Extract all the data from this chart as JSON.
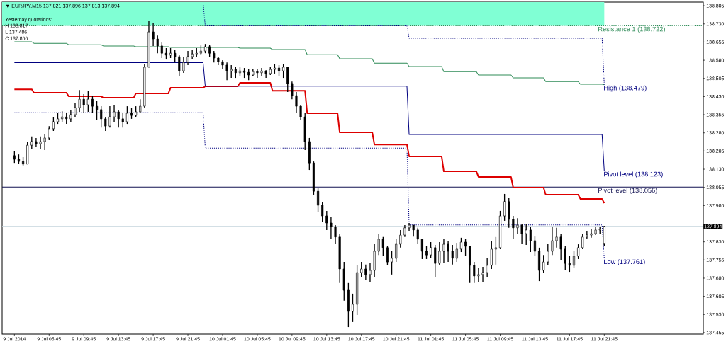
{
  "chart_data": {
    "type": "candlestick",
    "title": "▼ EURJPY,M15 137.821 137.896 137.813 137.894",
    "annotations": [
      "Yesterday quotations:",
      "H 138.817",
      "L 137.486",
      "C 137.866"
    ],
    "color": "#000000",
    "x": [
      "2014-07-09T01:45",
      "2014-07-09T02:15",
      "2014-07-09T02:45",
      "2014-07-09T03:15",
      "2014-07-09T03:45",
      "2014-07-09T04:15",
      "2014-07-09T04:45",
      "2014-07-09T05:15",
      "2014-07-09T05:45",
      "2014-07-09T06:15",
      "2014-07-09T06:45",
      "2014-07-09T07:15",
      "2014-07-09T07:45",
      "2014-07-09T08:15",
      "2014-07-09T08:45",
      "2014-07-09T09:15",
      "2014-07-09T09:45",
      "2014-07-09T10:15",
      "2014-07-09T10:45",
      "2014-07-09T11:15",
      "2014-07-09T11:45",
      "2014-07-09T12:15",
      "2014-07-09T12:45",
      "2014-07-09T13:15",
      "2014-07-09T13:45",
      "2014-07-09T14:15",
      "2014-07-09T14:45",
      "2014-07-09T15:15",
      "2014-07-09T15:45",
      "2014-07-09T16:15",
      "2014-07-09T16:45",
      "2014-07-09T17:15",
      "2014-07-09T17:45",
      "2014-07-09T18:15",
      "2014-07-09T18:45",
      "2014-07-09T19:15",
      "2014-07-09T19:45",
      "2014-07-09T20:15",
      "2014-07-09T20:45",
      "2014-07-09T21:15",
      "2014-07-09T21:45",
      "2014-07-09T22:15",
      "2014-07-09T22:45",
      "2014-07-09T23:15",
      "2014-07-09T23:45",
      "2014-07-10T00:15",
      "2014-07-10T00:45",
      "2014-07-10T01:15",
      "2014-07-10T01:45",
      "2014-07-10T02:15",
      "2014-07-10T02:45",
      "2014-07-10T03:15",
      "2014-07-10T03:45",
      "2014-07-10T04:15",
      "2014-07-10T04:45",
      "2014-07-10T05:15",
      "2014-07-10T05:45",
      "2014-07-10T06:15",
      "2014-07-10T06:45",
      "2014-07-10T07:15",
      "2014-07-10T07:45",
      "2014-07-10T08:15",
      "2014-07-10T08:45",
      "2014-07-10T09:15",
      "2014-07-10T09:45",
      "2014-07-10T10:15",
      "2014-07-10T10:45",
      "2014-07-10T11:15",
      "2014-07-10T11:45",
      "2014-07-10T12:15",
      "2014-07-10T12:45",
      "2014-07-10T13:15",
      "2014-07-10T13:45",
      "2014-07-10T14:15",
      "2014-07-10T14:45",
      "2014-07-10T15:15",
      "2014-07-10T15:45",
      "2014-07-10T16:15",
      "2014-07-10T16:45",
      "2014-07-10T17:15",
      "2014-07-10T17:45",
      "2014-07-10T18:15",
      "2014-07-10T18:45",
      "2014-07-10T19:15",
      "2014-07-10T19:45",
      "2014-07-10T20:15",
      "2014-07-10T20:45",
      "2014-07-10T21:15",
      "2014-07-10T21:45",
      "2014-07-10T22:15",
      "2014-07-10T22:45",
      "2014-07-10T23:15",
      "2014-07-10T23:45",
      "2014-07-11T00:15",
      "2014-07-11T00:45",
      "2014-07-11T01:15",
      "2014-07-11T01:45",
      "2014-07-11T02:15",
      "2014-07-11T02:45",
      "2014-07-11T03:15",
      "2014-07-11T03:45",
      "2014-07-11T04:15",
      "2014-07-11T04:45",
      "2014-07-11T05:15",
      "2014-07-11T05:45",
      "2014-07-11T06:15",
      "2014-07-11T06:45",
      "2014-07-11T07:15",
      "2014-07-11T07:45",
      "2014-07-11T08:15",
      "2014-07-11T08:45",
      "2014-07-11T09:15",
      "2014-07-11T09:45",
      "2014-07-11T10:15",
      "2014-07-11T10:45",
      "2014-07-11T11:15",
      "2014-07-11T11:45",
      "2014-07-11T12:15",
      "2014-07-11T12:45",
      "2014-07-11T13:15",
      "2014-07-11T13:45",
      "2014-07-11T14:15",
      "2014-07-11T14:45",
      "2014-07-11T15:15",
      "2014-07-11T15:45",
      "2014-07-11T16:15",
      "2014-07-11T16:45",
      "2014-07-11T17:15",
      "2014-07-11T17:45",
      "2014-07-11T18:15",
      "2014-07-11T18:45",
      "2014-07-11T19:15",
      "2014-07-11T19:45",
      "2014-07-11T20:15",
      "2014-07-11T20:45",
      "2014-07-11T21:15",
      "2014-07-11T21:45"
    ],
    "ohlc": [
      [
        138.186,
        138.206,
        138.156,
        138.171
      ],
      [
        138.171,
        138.191,
        138.151,
        138.162
      ],
      [
        138.162,
        138.18,
        138.145,
        138.151
      ],
      [
        138.151,
        138.244,
        138.151,
        138.229
      ],
      [
        138.229,
        138.265,
        138.215,
        138.244
      ],
      [
        138.244,
        138.259,
        138.221,
        138.235
      ],
      [
        138.235,
        138.265,
        138.215,
        138.244
      ],
      [
        138.244,
        138.273,
        138.209,
        138.259
      ],
      [
        138.259,
        138.308,
        138.25,
        138.297
      ],
      [
        138.297,
        138.346,
        138.288,
        138.326
      ],
      [
        138.326,
        138.361,
        138.317,
        138.338
      ],
      [
        138.338,
        138.37,
        138.326,
        138.346
      ],
      [
        138.346,
        138.361,
        138.317,
        138.338
      ],
      [
        138.338,
        138.376,
        138.326,
        138.355
      ],
      [
        138.355,
        138.405,
        138.346,
        138.384
      ],
      [
        138.384,
        138.457,
        138.367,
        138.419
      ],
      [
        138.419,
        138.44,
        138.361,
        138.396
      ],
      [
        138.396,
        138.454,
        138.367,
        138.419
      ],
      [
        138.419,
        138.434,
        138.361,
        138.39
      ],
      [
        138.39,
        138.411,
        138.332,
        138.376
      ],
      [
        138.376,
        138.39,
        138.302,
        138.338
      ],
      [
        138.338,
        138.346,
        138.288,
        138.308
      ],
      [
        138.308,
        138.39,
        138.302,
        138.346
      ],
      [
        138.346,
        138.396,
        138.326,
        138.367
      ],
      [
        138.367,
        138.376,
        138.302,
        138.338
      ],
      [
        138.338,
        138.361,
        138.302,
        138.326
      ],
      [
        138.326,
        138.39,
        138.317,
        138.361
      ],
      [
        138.361,
        138.384,
        138.338,
        138.352
      ],
      [
        138.352,
        138.39,
        138.346,
        138.367
      ],
      [
        138.367,
        138.419,
        138.361,
        138.39
      ],
      [
        138.39,
        138.565,
        138.384,
        138.551
      ],
      [
        138.551,
        138.744,
        138.551,
        138.697
      ],
      [
        138.697,
        138.732,
        138.639,
        138.668
      ],
      [
        138.668,
        138.682,
        138.609,
        138.639
      ],
      [
        138.639,
        138.653,
        138.589,
        138.609
      ],
      [
        138.609,
        138.63,
        138.583,
        138.601
      ],
      [
        138.601,
        138.63,
        138.589,
        138.609
      ],
      [
        138.609,
        138.624,
        138.571,
        138.595
      ],
      [
        138.595,
        138.601,
        138.516,
        138.536
      ],
      [
        138.536,
        138.595,
        138.528,
        138.571
      ],
      [
        138.571,
        138.618,
        138.56,
        138.595
      ],
      [
        138.595,
        138.624,
        138.583,
        138.606
      ],
      [
        138.606,
        138.63,
        138.595,
        138.609
      ],
      [
        138.609,
        138.641,
        138.601,
        138.618
      ],
      [
        138.618,
        138.647,
        138.609,
        138.636
      ],
      [
        138.636,
        138.644,
        138.595,
        138.609
      ],
      [
        138.609,
        138.618,
        138.571,
        138.589
      ],
      [
        138.589,
        138.595,
        138.56,
        138.574
      ],
      [
        138.574,
        138.58,
        138.545,
        138.56
      ],
      [
        138.56,
        138.571,
        138.498,
        138.536
      ],
      [
        138.536,
        138.56,
        138.507,
        138.542
      ],
      [
        138.542,
        138.551,
        138.507,
        138.528
      ],
      [
        138.528,
        138.551,
        138.513,
        138.536
      ],
      [
        138.536,
        138.548,
        138.507,
        138.53
      ],
      [
        138.53,
        138.542,
        138.498,
        138.519
      ],
      [
        138.519,
        138.545,
        138.513,
        138.533
      ],
      [
        138.533,
        138.542,
        138.507,
        138.528
      ],
      [
        138.528,
        138.548,
        138.516,
        138.536
      ],
      [
        138.536,
        138.539,
        138.507,
        138.525
      ],
      [
        138.525,
        138.554,
        138.519,
        138.542
      ],
      [
        138.542,
        138.565,
        138.525,
        138.548
      ],
      [
        138.548,
        138.56,
        138.513,
        138.536
      ],
      [
        138.536,
        138.565,
        138.507,
        138.551
      ],
      [
        138.551,
        138.551,
        138.449,
        138.484
      ],
      [
        138.484,
        138.492,
        138.419,
        138.434
      ],
      [
        138.434,
        138.449,
        138.361,
        138.39
      ],
      [
        138.39,
        138.396,
        138.332,
        138.346
      ],
      [
        138.346,
        138.361,
        138.209,
        138.244
      ],
      [
        138.244,
        138.259,
        138.127,
        138.156
      ],
      [
        138.156,
        138.162,
        138.025,
        138.039
      ],
      [
        138.039,
        138.054,
        137.952,
        137.981
      ],
      [
        137.981,
        137.996,
        137.911,
        137.937
      ],
      [
        137.937,
        137.958,
        137.879,
        137.908
      ],
      [
        137.908,
        137.934,
        137.841,
        137.893
      ],
      [
        137.893,
        137.899,
        137.82,
        137.85
      ],
      [
        137.85,
        137.864,
        137.66,
        137.718
      ],
      [
        137.718,
        137.747,
        137.587,
        137.63
      ],
      [
        137.63,
        137.66,
        137.478,
        137.543
      ],
      [
        137.543,
        137.616,
        137.499,
        137.572
      ],
      [
        137.572,
        137.733,
        137.528,
        137.703
      ],
      [
        137.703,
        137.747,
        137.683,
        137.718
      ],
      [
        137.718,
        137.736,
        137.671,
        137.695
      ],
      [
        137.695,
        137.741,
        137.665,
        137.712
      ],
      [
        137.712,
        137.82,
        137.683,
        137.791
      ],
      [
        137.791,
        137.864,
        137.776,
        137.841
      ],
      [
        137.841,
        137.85,
        137.771,
        137.806
      ],
      [
        137.806,
        137.812,
        137.733,
        137.747
      ],
      [
        137.747,
        137.791,
        137.695,
        137.762
      ],
      [
        137.762,
        137.841,
        137.747,
        137.82
      ],
      [
        137.82,
        137.879,
        137.806,
        137.858
      ],
      [
        137.858,
        137.899,
        137.85,
        137.888
      ],
      [
        137.888,
        137.908,
        137.876,
        137.899
      ],
      [
        137.899,
        137.899,
        137.852,
        137.879
      ],
      [
        137.879,
        137.888,
        137.82,
        137.841
      ],
      [
        137.841,
        137.841,
        137.759,
        137.791
      ],
      [
        137.791,
        137.812,
        137.759,
        137.776
      ],
      [
        137.776,
        137.829,
        137.762,
        137.806
      ],
      [
        137.806,
        137.817,
        137.683,
        137.741
      ],
      [
        137.741,
        137.829,
        137.733,
        137.791
      ],
      [
        137.791,
        137.841,
        137.741,
        137.82
      ],
      [
        137.82,
        137.835,
        137.747,
        137.791
      ],
      [
        137.791,
        137.817,
        137.736,
        137.762
      ],
      [
        137.762,
        137.823,
        137.747,
        137.8
      ],
      [
        137.8,
        137.847,
        137.788,
        137.829
      ],
      [
        137.829,
        137.841,
        137.771,
        137.812
      ],
      [
        137.812,
        137.812,
        137.66,
        137.733
      ],
      [
        137.733,
        137.747,
        137.66,
        137.689
      ],
      [
        137.689,
        137.724,
        137.665,
        137.695
      ],
      [
        137.695,
        137.727,
        137.665,
        137.703
      ],
      [
        137.703,
        137.762,
        137.683,
        137.733
      ],
      [
        137.733,
        137.835,
        137.718,
        137.8
      ],
      [
        137.8,
        137.85,
        137.736,
        137.806
      ],
      [
        137.806,
        137.958,
        137.8,
        137.937
      ],
      [
        137.937,
        138.028,
        137.917,
        137.996
      ],
      [
        137.996,
        138.01,
        137.888,
        137.923
      ],
      [
        137.923,
        137.937,
        137.841,
        137.888
      ],
      [
        137.888,
        137.928,
        137.864,
        137.899
      ],
      [
        137.899,
        137.905,
        137.82,
        137.864
      ],
      [
        137.864,
        137.905,
        137.817,
        137.879
      ],
      [
        137.879,
        137.893,
        137.788,
        137.835
      ],
      [
        137.835,
        137.852,
        137.771,
        137.791
      ],
      [
        137.791,
        137.806,
        137.668,
        137.712
      ],
      [
        137.712,
        137.776,
        137.703,
        137.747
      ],
      [
        137.747,
        137.82,
        137.733,
        137.791
      ],
      [
        137.791,
        137.893,
        137.776,
        137.835
      ],
      [
        137.835,
        137.888,
        137.806,
        137.85
      ],
      [
        137.85,
        137.864,
        137.753,
        137.8
      ],
      [
        137.8,
        137.812,
        137.712,
        137.741
      ],
      [
        137.741,
        137.771,
        137.706,
        137.733
      ],
      [
        137.733,
        137.791,
        137.724,
        137.771
      ],
      [
        137.771,
        137.82,
        137.759,
        137.806
      ],
      [
        137.806,
        137.864,
        137.8,
        137.85
      ],
      [
        137.85,
        137.876,
        137.841,
        137.858
      ],
      [
        137.858,
        137.882,
        137.847,
        137.864
      ],
      [
        137.864,
        137.893,
        137.858,
        137.879
      ],
      [
        137.879,
        137.893,
        137.864,
        137.882
      ],
      [
        137.821,
        137.896,
        137.813,
        137.894
      ]
    ],
    "series": [
      {
        "type": "line",
        "color": "#dd0000",
        "x": [
          "2014-07-09T01:45",
          "2014-07-09T03:45",
          "2014-07-09T04:00",
          "2014-07-09T07:45",
          "2014-07-09T08:00",
          "2014-07-09T11:45",
          "2014-07-09T12:00",
          "2014-07-09T15:30",
          "2014-07-09T15:45",
          "2014-07-09T19:30",
          "2014-07-09T19:45",
          "2014-07-09T23:30",
          "2014-07-09T23:45",
          "2014-07-10T03:30",
          "2014-07-10T03:45",
          "2014-07-10T07:15",
          "2014-07-10T07:30",
          "2014-07-10T11:15",
          "2014-07-10T11:30",
          "2014-07-10T15:00",
          "2014-07-10T15:15",
          "2014-07-10T19:00",
          "2014-07-10T19:15",
          "2014-07-10T23:00",
          "2014-07-10T23:15",
          "2014-07-11T03:00",
          "2014-07-11T03:15",
          "2014-07-11T07:00",
          "2014-07-11T07:15",
          "2014-07-11T11:00",
          "2014-07-11T11:15",
          "2014-07-11T14:45",
          "2014-07-11T15:00",
          "2014-07-11T18:45",
          "2014-07-11T19:00",
          "2014-07-11T21:30",
          "2014-07-11T21:45"
        ],
        "values": [
          138.46,
          138.46,
          138.446,
          138.446,
          138.431,
          138.431,
          138.425,
          138.425,
          138.443,
          138.443,
          138.466,
          138.466,
          138.472,
          138.472,
          138.487,
          138.487,
          138.454,
          138.454,
          138.361,
          138.361,
          138.282,
          138.282,
          138.232,
          138.232,
          138.183,
          138.183,
          138.121,
          138.121,
          138.098,
          138.098,
          138.054,
          138.054,
          138.025,
          138.025,
          138.007,
          138.007,
          137.99
        ]
      },
      {
        "type": "line",
        "color": "#2e8b57",
        "x": [
          "2014-07-09T01:45",
          "2014-07-09T03:45",
          "2014-07-09T04:00",
          "2014-07-09T07:45",
          "2014-07-09T08:00",
          "2014-07-09T11:45",
          "2014-07-09T12:00",
          "2014-07-09T15:30",
          "2014-07-09T15:45",
          "2014-07-09T19:30",
          "2014-07-09T19:45",
          "2014-07-09T23:30",
          "2014-07-09T23:45",
          "2014-07-10T03:30",
          "2014-07-10T03:45",
          "2014-07-10T07:15",
          "2014-07-10T07:30",
          "2014-07-10T11:15",
          "2014-07-10T11:30",
          "2014-07-10T15:00",
          "2014-07-10T15:15",
          "2014-07-10T19:00",
          "2014-07-10T19:15",
          "2014-07-10T23:00",
          "2014-07-10T23:15",
          "2014-07-11T03:00",
          "2014-07-11T03:15",
          "2014-07-11T07:00",
          "2014-07-11T07:15",
          "2014-07-11T11:00",
          "2014-07-11T11:15",
          "2014-07-11T14:45",
          "2014-07-11T15:00",
          "2014-07-11T18:45",
          "2014-07-11T19:00",
          "2014-07-11T21:30",
          "2014-07-11T21:45"
        ],
        "values": [
          138.656,
          138.656,
          138.65,
          138.65,
          138.644,
          138.644,
          138.639,
          138.639,
          138.636,
          138.636,
          138.633,
          138.633,
          138.633,
          138.633,
          138.63,
          138.63,
          138.624,
          138.624,
          138.603,
          138.603,
          138.586,
          138.586,
          138.568,
          138.568,
          138.554,
          138.554,
          138.533,
          138.533,
          138.519,
          138.519,
          138.507,
          138.507,
          138.492,
          138.492,
          138.481,
          138.481,
          138.479
        ]
      },
      {
        "type": "line",
        "name": "Pivot level (138.123)",
        "color": "#000080",
        "x": [
          "2014-07-09T01:45",
          "2014-07-09T23:30",
          "2014-07-09T23:45",
          "2014-07-10T23:00",
          "2014-07-10T23:15",
          "2014-07-11T21:30",
          "2014-07-11T21:45"
        ],
        "values": [
          138.57,
          138.57,
          138.473,
          138.473,
          138.273,
          138.273,
          138.123
        ]
      },
      {
        "type": "line",
        "name": "High (138.479)",
        "color": "#000080",
        "line_style": "dotted",
        "x": [
          "2014-07-09T23:30",
          "2014-07-09T23:45",
          "2014-07-10T23:00",
          "2014-07-10T23:15",
          "2014-07-11T21:30",
          "2014-07-11T21:45"
        ],
        "values": [
          138.817,
          138.722,
          138.722,
          138.671,
          138.671,
          138.479
        ]
      },
      {
        "type": "line",
        "name": "Low (137.761)",
        "color": "#000080",
        "line_style": "dotted",
        "x": [
          "2014-07-09T01:45",
          "2014-07-09T23:30",
          "2014-07-09T23:45",
          "2014-07-10T23:00",
          "2014-07-10T23:15",
          "2014-07-11T21:30",
          "2014-07-11T21:45"
        ],
        "values": [
          138.363,
          138.363,
          138.217,
          138.217,
          137.9,
          137.9,
          137.761
        ]
      }
    ],
    "ref_lines": [
      {
        "axis": "y",
        "value": 138.722,
        "label": "Resistance 1 (138.722)",
        "color": "#2e8b57",
        "line_style": "dotted"
      },
      {
        "axis": "y",
        "value": 138.056,
        "label": "Pivot level (138.056)",
        "color": "#101050"
      },
      {
        "axis": "y",
        "value": 137.894,
        "label": "137.894",
        "color": "#c4d4dc"
      }
    ],
    "bands": [
      {
        "axis": "y",
        "from": 138.722,
        "to": 138.82,
        "color": "#80ffd4"
      }
    ],
    "xlim": [
      "2014-07-09T00:20",
      "2014-07-12T09:10"
    ],
    "ylim": [
      137.449,
      138.82
    ],
    "xticks": [
      {
        "value": "2014-07-09T01:45",
        "label": "9 Jul 2014"
      },
      {
        "value": "2014-07-09T05:45",
        "label": "9 Jul 05:45"
      },
      {
        "value": "2014-07-09T09:45",
        "label": "9 Jul 09:45"
      },
      {
        "value": "2014-07-09T13:45",
        "label": "9 Jul 13:45"
      },
      {
        "value": "2014-07-09T17:45",
        "label": "9 Jul 17:45"
      },
      {
        "value": "2014-07-09T21:45",
        "label": "9 Jul 21:45"
      },
      {
        "value": "2014-07-10T01:45",
        "label": "10 Jul 01:45"
      },
      {
        "value": "2014-07-10T05:45",
        "label": "10 Jul 05:45"
      },
      {
        "value": "2014-07-10T09:45",
        "label": "10 Jul 09:45"
      },
      {
        "value": "2014-07-10T13:45",
        "label": "10 Jul 13:45"
      },
      {
        "value": "2014-07-10T17:45",
        "label": "10 Jul 17:45"
      },
      {
        "value": "2014-07-10T21:45",
        "label": "10 Jul 21:45"
      },
      {
        "value": "2014-07-11T01:45",
        "label": "11 Jul 01:45"
      },
      {
        "value": "2014-07-11T05:45",
        "label": "11 Jul 05:45"
      },
      {
        "value": "2014-07-11T09:45",
        "label": "11 Jul 09:45"
      },
      {
        "value": "2014-07-11T13:45",
        "label": "11 Jul 13:45"
      },
      {
        "value": "2014-07-11T17:45",
        "label": "11 Jul 17:45"
      },
      {
        "value": "2014-07-11T21:45",
        "label": "11 Jul 21:45"
      }
    ],
    "yticks": [
      137.455,
      {
        "value": 137.53,
        "label": "137.530"
      },
      137.605,
      {
        "value": 137.68,
        "label": "137.680"
      },
      137.755,
      {
        "value": 137.83,
        "label": "137.830"
      },
      {
        "value": 137.98,
        "label": "137.980"
      },
      138.055,
      {
        "value": 138.13,
        "label": "138.130"
      },
      138.205,
      {
        "value": 138.28,
        "label": "138.280"
      },
      138.355,
      {
        "value": 138.43,
        "label": "138.430"
      },
      138.505,
      {
        "value": 138.58,
        "label": "138.580"
      },
      138.655,
      {
        "value": 138.73,
        "label": "138.730"
      },
      138.805
    ]
  }
}
